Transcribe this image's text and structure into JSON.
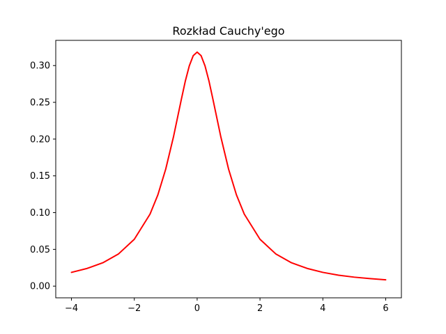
{
  "chart_data": {
    "type": "line",
    "title": "Rozkład Cauchy'ego",
    "xlabel": "",
    "ylabel": "",
    "xlim": [
      -4.5,
      6.5
    ],
    "ylim": [
      -0.0159,
      0.3343
    ],
    "grid": false,
    "x_ticks": [
      -4,
      -2,
      0,
      2,
      4,
      6
    ],
    "x_tick_labels": [
      "−4",
      "−2",
      "0",
      "2",
      "4",
      "6"
    ],
    "y_ticks": [
      0.0,
      0.05,
      0.1,
      0.15,
      0.2,
      0.25,
      0.3
    ],
    "y_tick_labels": [
      "0.00",
      "0.05",
      "0.10",
      "0.15",
      "0.20",
      "0.25",
      "0.30"
    ],
    "series": [
      {
        "color": "#ff0000",
        "x": [
          -4.0,
          -3.5,
          -3.0,
          -2.5,
          -2.0,
          -1.5,
          -1.25,
          -1.0,
          -0.75,
          -0.5,
          -0.375,
          -0.25,
          -0.125,
          0.0,
          0.125,
          0.25,
          0.375,
          0.5,
          0.75,
          1.0,
          1.25,
          1.5,
          2.0,
          2.5,
          3.0,
          3.5,
          4.0,
          4.5,
          5.0,
          5.5,
          6.0
        ],
        "y": [
          0.0187,
          0.0241,
          0.0318,
          0.0439,
          0.0637,
          0.0979,
          0.1242,
          0.1592,
          0.2037,
          0.2546,
          0.2792,
          0.2996,
          0.3135,
          0.3183,
          0.3135,
          0.2996,
          0.2792,
          0.2546,
          0.2037,
          0.1592,
          0.1242,
          0.0979,
          0.0637,
          0.0439,
          0.0318,
          0.0241,
          0.0187,
          0.0149,
          0.0122,
          0.0102,
          0.0086
        ]
      }
    ]
  }
}
